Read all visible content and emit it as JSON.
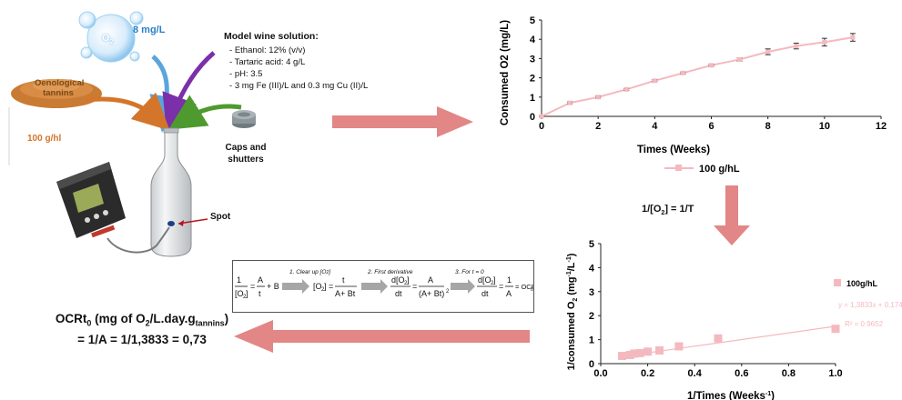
{
  "setup": {
    "o2_label": "O",
    "o2_sub": "2",
    "o2_conc": "8 mg/L",
    "tannins_label": "Oenological tannins",
    "tannins_dose": "100 g/hl",
    "wine_title": "Model wine solution:",
    "wine_items": [
      "Ethanol: 12% (v/v)",
      "Tartaric acid: 4 g/L",
      "pH: 3.5",
      "3 mg Fe (III)/L and 0.3 mg Cu (II)/L"
    ],
    "caps_label": "Caps and shutters",
    "spot_label": "Spot"
  },
  "transform": {
    "label": "1/[O",
    "label_sub": "2",
    "label_end": "] = 1/T"
  },
  "equation_steps": {
    "step1": "1. Clear up [O",
    "step1_sub": "2",
    "step1_end": "]",
    "step2": "2. First derivative",
    "step3": "3. For t = 0"
  },
  "result": {
    "line1": "OCRt",
    "line1_sub": "0",
    "line1_mid": " (mg of O",
    "line1_sub2": "2",
    "line1_mid2": "/L.day.g",
    "line1_sub3": "tannins",
    "line1_end": ")",
    "line2": "= 1/A = 1/1,3833 = 0,73"
  },
  "colors": {
    "series": "#f4b9bf",
    "arrow_big": "#e28686",
    "arrow_blue": "#5aa6dc",
    "arrow_purple": "#7b2fa8",
    "arrow_orange": "#d3762b",
    "arrow_green": "#4e9a2e",
    "grey_arrow": "#a6a6a6"
  },
  "chart_data": [
    {
      "type": "line",
      "xlabel": "Times (Weeks)",
      "ylabel": "Consumed O2 (mg/L)",
      "xlim": [
        0,
        12
      ],
      "ylim": [
        0,
        5
      ],
      "xticks": [
        0,
        2,
        4,
        6,
        8,
        10,
        12
      ],
      "yticks": [
        0,
        1,
        2,
        3,
        4,
        5
      ],
      "legend_position": "bottom",
      "grid": false,
      "series": [
        {
          "name": "100 g/hL",
          "x": [
            0,
            1,
            2,
            3,
            4,
            5,
            6,
            7,
            8,
            9,
            10,
            11
          ],
          "y": [
            0,
            0.7,
            1.0,
            1.4,
            1.85,
            2.25,
            2.65,
            2.95,
            3.35,
            3.65,
            3.85,
            4.1
          ],
          "err": [
            0,
            0.05,
            0.05,
            0.05,
            0.05,
            0.05,
            0.05,
            0.08,
            0.15,
            0.15,
            0.2,
            0.2
          ]
        }
      ]
    },
    {
      "type": "scatter",
      "xlabel": "1/Times (Weeks",
      "xlabel_sup": "-1",
      "xlabel_end": ")",
      "ylabel": "1/consumed O",
      "ylabel_sub": "2",
      "ylabel_mid": " (mg",
      "ylabel_sup": "-1",
      "ylabel_mid2": "/L",
      "ylabel_sup2": "-1",
      "ylabel_end": ")",
      "xlim": [
        0,
        1
      ],
      "ylim": [
        0,
        5
      ],
      "xticks": [
        0.0,
        0.2,
        0.4,
        0.6,
        0.8,
        1.0
      ],
      "yticks": [
        0,
        1,
        2,
        3,
        4,
        5
      ],
      "legend_position": "right",
      "grid": false,
      "trend_equation": "y = 1,3833x + 0,1744",
      "r_squared": "R² = 0.9652",
      "trend": {
        "slope": 1.3833,
        "intercept": 0.1744,
        "x_range": [
          0.09,
          1.0
        ]
      },
      "series": [
        {
          "name": "100g/hL",
          "x": [
            0.091,
            0.125,
            0.143,
            0.167,
            0.2,
            0.25,
            0.333,
            0.5,
            1.0
          ],
          "y": [
            0.32,
            0.36,
            0.42,
            0.44,
            0.5,
            0.55,
            0.72,
            1.05,
            1.45
          ]
        }
      ]
    }
  ]
}
